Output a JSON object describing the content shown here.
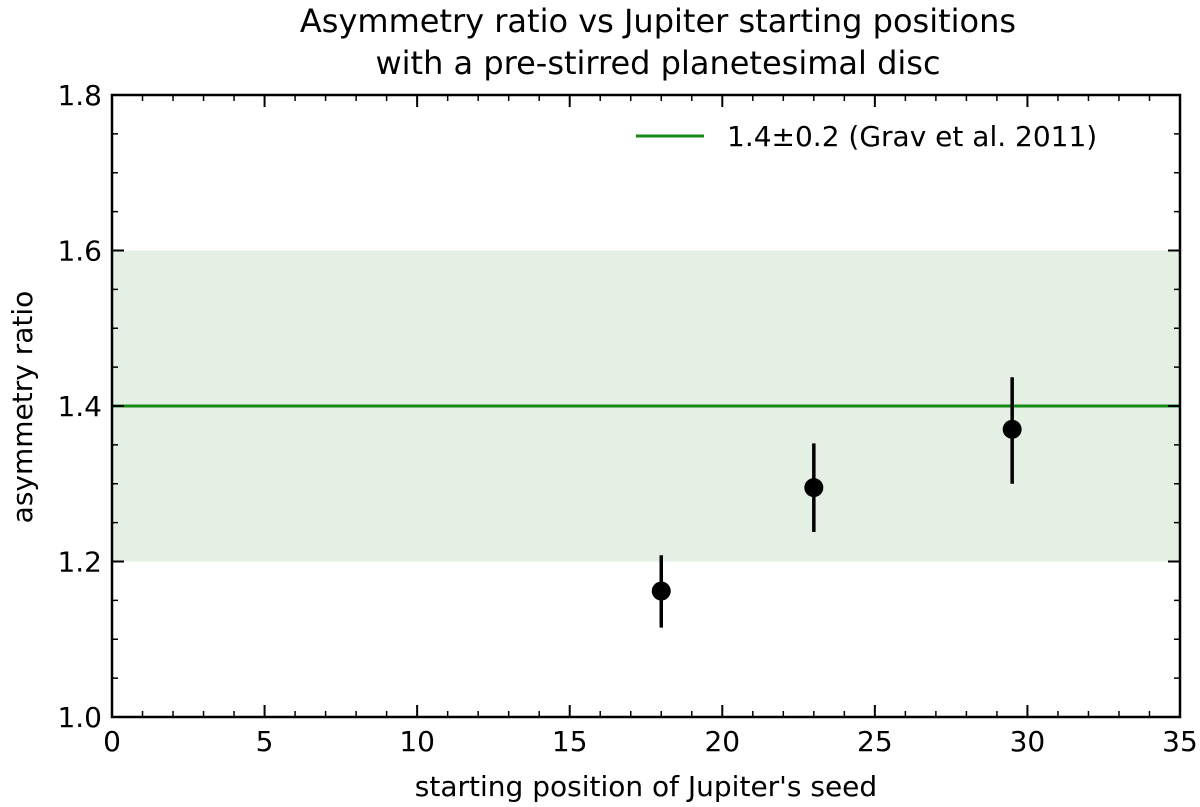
{
  "chart_data": {
    "type": "scatter",
    "title_lines": [
      "Asymmetry ratio vs Jupiter starting positions",
      "with a pre-stirred planetesimal disc"
    ],
    "xlabel": "starting position of Jupiter's seed",
    "ylabel": "asymmetry ratio",
    "xlim": [
      0,
      35
    ],
    "ylim": [
      1.0,
      1.8
    ],
    "x_ticks": [
      0,
      5,
      10,
      15,
      20,
      25,
      30,
      35
    ],
    "x_tick_labels": [
      "0",
      "5",
      "10",
      "15",
      "20",
      "25",
      "30",
      "35"
    ],
    "y_ticks": [
      1.0,
      1.2,
      1.4,
      1.6,
      1.8
    ],
    "y_tick_labels": [
      "1.0",
      "1.2",
      "1.4",
      "1.6",
      "1.8"
    ],
    "grid": false,
    "legend_position": "top-right",
    "series": [
      {
        "type": "errorbar",
        "color": "#000000",
        "points": [
          {
            "x": 18.0,
            "y": 1.162,
            "yerr_low": 1.115,
            "yerr_high": 1.208
          },
          {
            "x": 23.0,
            "y": 1.295,
            "yerr_low": 1.238,
            "yerr_high": 1.352
          },
          {
            "x": 29.5,
            "y": 1.37,
            "yerr_low": 1.3,
            "yerr_high": 1.437
          }
        ]
      }
    ],
    "reference": {
      "name": "1.4±0.2 (Grav et al. 2011)",
      "value": 1.4,
      "band": [
        1.2,
        1.6
      ],
      "line_color": "#138a13",
      "band_color": "#e5f0e5"
    }
  }
}
